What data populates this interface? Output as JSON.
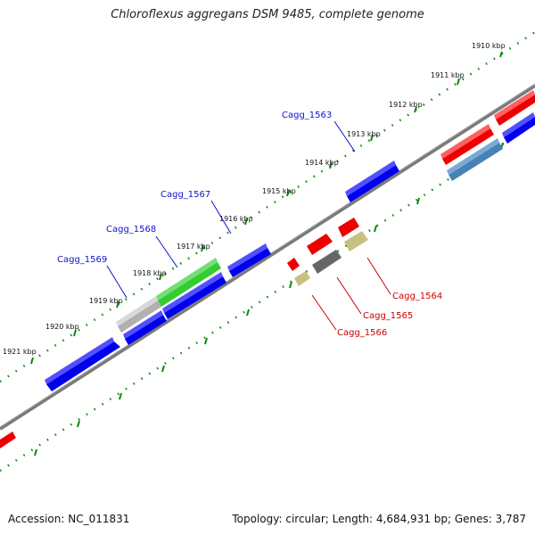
{
  "title": "Chloroflexus aggregans DSM 9485, complete genome",
  "footer": {
    "accession": "Accession: NC_011831",
    "summary": "Topology: circular; Length: 4,684,931 bp; Genes: 3,787"
  },
  "scale_labels": [
    "1910 kbp",
    "1911 kbp",
    "1912 kbp",
    "1913 kbp",
    "1914 kbp",
    "1915 kbp",
    "1916 kbp",
    "1917 kbp",
    "1918 kbp",
    "1919 kbp",
    "1920 kbp",
    "1921 kbp"
  ],
  "gene_labels": {
    "cagg_1563": "Cagg_1563",
    "cagg_1564": "Cagg_1564",
    "cagg_1565": "Cagg_1565",
    "cagg_1566": "Cagg_1566",
    "cagg_1567": "Cagg_1567",
    "cagg_1568": "Cagg_1568",
    "cagg_1569": "Cagg_1569"
  },
  "colors": {
    "backbone": "#7a7a7a",
    "tick": "#0a8a0a",
    "forward_gene": "#0000ee",
    "reverse_gene": "#ee0000",
    "rna_gene": "#33cc33",
    "pseudo_gene": "#aaaaaa",
    "misc_gene": "#c8c080",
    "dark_gene": "#666666",
    "steel_gene": "#4682b4",
    "label_forward": "#1111cc",
    "label_reverse": "#cc0000"
  }
}
